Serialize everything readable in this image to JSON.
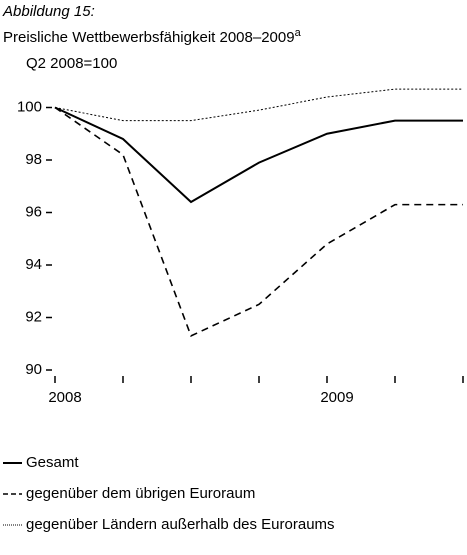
{
  "chart_data": {
    "type": "line",
    "figure_label": "Abbildung 15:",
    "title": "Preisliche Wettbewerbsfähigkeit 2008–2009",
    "title_note": "a",
    "y_label": "Q2 2008=100",
    "categories": [
      "2008",
      null,
      null,
      null,
      "2009",
      null,
      null
    ],
    "series": [
      {
        "name": "Gesamt",
        "color": "#000000",
        "dash": "solid",
        "values": [
          100,
          98.8,
          96.4,
          97.9,
          99.0,
          99.5,
          99.5
        ]
      },
      {
        "name": "gegenüber dem übrigen Euroraum",
        "color": "#000000",
        "dash": "dashed",
        "values": [
          100,
          98.2,
          91.3,
          92.5,
          94.8,
          96.3,
          96.3
        ]
      },
      {
        "name": "gegenüber Ländern außerhalb des Euroraums",
        "color": "#000000",
        "dash": "dotted",
        "values": [
          100,
          99.5,
          99.5,
          99.9,
          100.4,
          100.7,
          100.7
        ]
      }
    ],
    "ylim": [
      90,
      101.2
    ],
    "yticks": [
      90,
      92,
      94,
      96,
      98,
      100
    ],
    "grid": false
  }
}
